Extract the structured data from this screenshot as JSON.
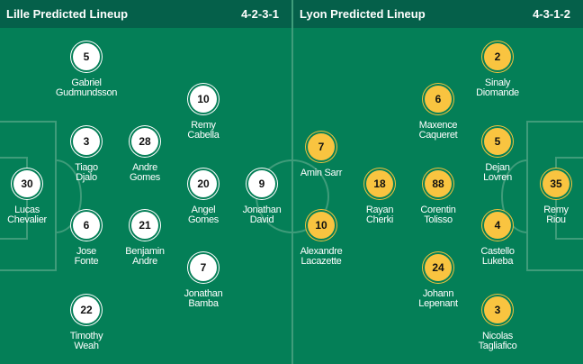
{
  "home": {
    "title": "Lille Predicted Lineup",
    "formation": "4-2-3-1",
    "color": "#ffffff",
    "players": [
      {
        "num": "5",
        "name": "Gabriel\nGudmundsson"
      },
      {
        "num": "3",
        "name": "Tiago\nDjalo"
      },
      {
        "num": "28",
        "name": "Andre\nGomes"
      },
      {
        "num": "10",
        "name": "Remy\nCabella"
      },
      {
        "num": "30",
        "name": "Lucas\nChevalier"
      },
      {
        "num": "20",
        "name": "Angel\nGomes"
      },
      {
        "num": "9",
        "name": "Jonathan\nDavid"
      },
      {
        "num": "6",
        "name": "Jose\nFonte"
      },
      {
        "num": "21",
        "name": "Benjamin\nAndre"
      },
      {
        "num": "7",
        "name": "Jonathan\nBamba"
      },
      {
        "num": "22",
        "name": "Timothy\nWeah"
      }
    ]
  },
  "away": {
    "title": "Lyon Predicted Lineup",
    "formation": "4-3-1-2",
    "color": "#f9c440",
    "players": [
      {
        "num": "2",
        "name": "Sinaly\nDiomande"
      },
      {
        "num": "6",
        "name": "Maxence\nCaqueret"
      },
      {
        "num": "5",
        "name": "Dejan\nLovren"
      },
      {
        "num": "7",
        "name": "Amin Sarr"
      },
      {
        "num": "18",
        "name": "Rayan\nCherki"
      },
      {
        "num": "88",
        "name": "Corentin\nTolisso"
      },
      {
        "num": "35",
        "name": "Remy\nRiou"
      },
      {
        "num": "10",
        "name": "Alexandre\nLacazette"
      },
      {
        "num": "4",
        "name": "Castello\nLukeba"
      },
      {
        "num": "24",
        "name": "Johann\nLepenant"
      },
      {
        "num": "3",
        "name": "Nicolas\nTagliafico"
      }
    ]
  }
}
